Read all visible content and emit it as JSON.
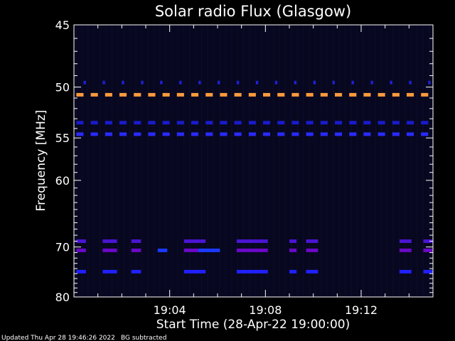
{
  "chart_data": {
    "type": "heatmap",
    "title": "Solar radio Flux (Glasgow)",
    "xlabel": "Start Time (28-Apr-22 19:00:00)",
    "ylabel": "Frequency [MHz]",
    "x_unit": "minutes after 19:00:00",
    "xlim": [
      0,
      15
    ],
    "ylim": [
      45,
      80
    ],
    "y_scale": "reciprocal",
    "x_ticks": [
      {
        "value": 4,
        "label": "19:04"
      },
      {
        "value": 8,
        "label": "19:08"
      },
      {
        "value": 12,
        "label": "19:12"
      }
    ],
    "y_ticks": [
      {
        "value": 45,
        "label": "45"
      },
      {
        "value": 50,
        "label": "50"
      },
      {
        "value": 55,
        "label": "55"
      },
      {
        "value": 60,
        "label": "60"
      },
      {
        "value": 70,
        "label": "70"
      },
      {
        "value": 80,
        "label": "80"
      }
    ],
    "background_color": "#07071f",
    "emission_bands": [
      {
        "freq": 49.6,
        "color": "#1f1fd6",
        "segments": [
          [
            0.4,
            0.5
          ],
          [
            1.2,
            1.3
          ],
          [
            2.0,
            2.1
          ],
          [
            2.8,
            2.9
          ],
          [
            3.6,
            3.7
          ],
          [
            4.4,
            4.5
          ],
          [
            5.2,
            5.3
          ],
          [
            6.0,
            6.1
          ],
          [
            6.8,
            6.9
          ],
          [
            7.6,
            7.7
          ],
          [
            8.4,
            8.5
          ],
          [
            9.2,
            9.3
          ],
          [
            10.0,
            10.1
          ],
          [
            10.8,
            10.9
          ],
          [
            11.6,
            11.7
          ],
          [
            12.4,
            12.5
          ],
          [
            13.2,
            13.3
          ],
          [
            14.0,
            14.1
          ],
          [
            14.8,
            14.9
          ]
        ]
      },
      {
        "freq": 50.7,
        "color": "#ff9a3c",
        "segments": [
          [
            0.1,
            0.4
          ],
          [
            0.7,
            1.0
          ],
          [
            1.3,
            1.6
          ],
          [
            1.9,
            2.2
          ],
          [
            2.5,
            2.8
          ],
          [
            3.1,
            3.4
          ],
          [
            3.7,
            4.0
          ],
          [
            4.3,
            4.6
          ],
          [
            4.9,
            5.2
          ],
          [
            5.5,
            5.8
          ],
          [
            6.1,
            6.4
          ],
          [
            6.7,
            7.0
          ],
          [
            7.3,
            7.6
          ],
          [
            7.9,
            8.2
          ],
          [
            8.5,
            8.8
          ],
          [
            9.1,
            9.4
          ],
          [
            9.7,
            10.0
          ],
          [
            10.3,
            10.6
          ],
          [
            10.9,
            11.2
          ],
          [
            11.5,
            11.8
          ],
          [
            12.1,
            12.4
          ],
          [
            12.7,
            13.0
          ],
          [
            13.3,
            13.6
          ],
          [
            13.9,
            14.2
          ],
          [
            14.5,
            14.8
          ]
        ]
      },
      {
        "freq": 53.4,
        "color": "#1a1acc",
        "segments": [
          [
            0.1,
            0.4
          ],
          [
            0.7,
            1.0
          ],
          [
            1.3,
            1.6
          ],
          [
            1.9,
            2.2
          ],
          [
            2.5,
            2.8
          ],
          [
            3.1,
            3.4
          ],
          [
            3.7,
            4.0
          ],
          [
            4.3,
            4.6
          ],
          [
            4.9,
            5.2
          ],
          [
            5.5,
            5.8
          ],
          [
            6.1,
            6.4
          ],
          [
            6.7,
            7.0
          ],
          [
            7.3,
            7.6
          ],
          [
            7.9,
            8.2
          ],
          [
            8.5,
            8.8
          ],
          [
            9.1,
            9.4
          ],
          [
            9.7,
            10.0
          ],
          [
            10.3,
            10.6
          ],
          [
            10.9,
            11.2
          ],
          [
            11.5,
            11.8
          ],
          [
            12.1,
            12.4
          ],
          [
            12.7,
            13.0
          ],
          [
            13.3,
            13.6
          ],
          [
            13.9,
            14.2
          ],
          [
            14.5,
            14.8
          ]
        ]
      },
      {
        "freq": 54.6,
        "color": "#2a2aff",
        "segments": [
          [
            0.1,
            0.4
          ],
          [
            0.7,
            1.0
          ],
          [
            1.3,
            1.6
          ],
          [
            1.9,
            2.2
          ],
          [
            2.5,
            2.8
          ],
          [
            3.1,
            3.4
          ],
          [
            3.7,
            4.0
          ],
          [
            4.3,
            4.6
          ],
          [
            4.9,
            5.2
          ],
          [
            5.5,
            5.8
          ],
          [
            6.1,
            6.4
          ],
          [
            6.7,
            7.0
          ],
          [
            7.3,
            7.6
          ],
          [
            7.9,
            8.2
          ],
          [
            8.5,
            8.8
          ],
          [
            9.1,
            9.4
          ],
          [
            9.7,
            10.0
          ],
          [
            10.3,
            10.6
          ],
          [
            10.9,
            11.2
          ],
          [
            11.5,
            11.8
          ],
          [
            12.1,
            12.4
          ],
          [
            12.7,
            13.0
          ],
          [
            13.3,
            13.6
          ],
          [
            13.9,
            14.2
          ],
          [
            14.5,
            14.8
          ]
        ]
      },
      {
        "freq": 69.0,
        "color": "#4a14d2",
        "segments": [
          [
            0.1,
            0.5
          ],
          [
            1.2,
            1.8
          ],
          [
            2.4,
            2.8
          ],
          [
            4.6,
            5.5
          ],
          [
            6.8,
            8.1
          ],
          [
            9.0,
            9.3
          ],
          [
            9.7,
            10.2
          ],
          [
            13.6,
            14.1
          ],
          [
            14.6,
            15.0
          ]
        ]
      },
      {
        "freq": 70.6,
        "color": "#6a08c8",
        "segments": [
          [
            0.1,
            0.5
          ],
          [
            1.2,
            1.8
          ],
          [
            2.4,
            2.8
          ],
          [
            4.6,
            5.5
          ],
          [
            6.8,
            8.1
          ],
          [
            9.0,
            9.3
          ],
          [
            9.7,
            10.2
          ],
          [
            13.6,
            14.1
          ],
          [
            14.6,
            15.0
          ]
        ]
      },
      {
        "freq": 70.6,
        "color": "#1a3aff",
        "segments": [
          [
            3.5,
            3.9
          ],
          [
            5.2,
            6.1
          ]
        ]
      },
      {
        "freq": 74.6,
        "color": "#2020ff",
        "segments": [
          [
            0.1,
            0.5
          ],
          [
            1.2,
            1.8
          ],
          [
            2.4,
            2.8
          ],
          [
            4.6,
            5.5
          ],
          [
            6.8,
            8.1
          ],
          [
            9.0,
            9.3
          ],
          [
            9.7,
            10.2
          ],
          [
            13.6,
            14.1
          ],
          [
            14.6,
            15.0
          ]
        ]
      }
    ],
    "grid": false
  },
  "footer": {
    "updated": "Updated Thu Apr 28 19:46:26 2022",
    "note": "BG subtracted"
  }
}
